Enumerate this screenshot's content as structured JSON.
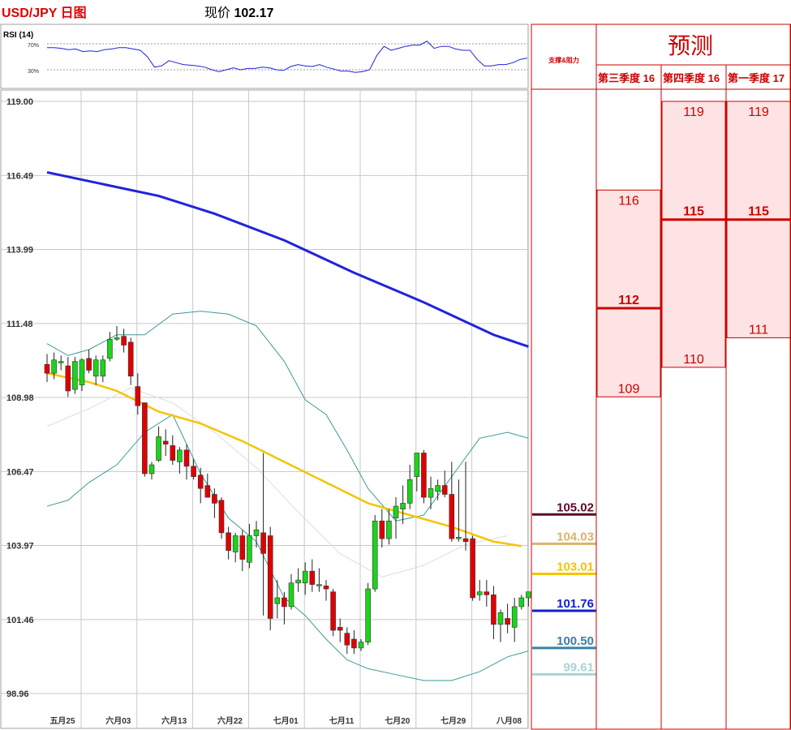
{
  "header": {
    "pair_title": "USD/JPY 日图",
    "price_label": "现价",
    "price_value": "102.17"
  },
  "rsi": {
    "label": "RSI (14)",
    "levels": [
      "70%",
      "30%"
    ],
    "values": [
      64,
      64,
      63,
      61,
      62,
      58,
      59,
      58,
      61,
      62,
      64,
      64,
      62,
      60,
      50,
      34,
      36,
      44,
      41,
      38,
      37,
      36,
      34,
      30,
      27,
      30,
      33,
      30,
      32,
      32,
      34,
      33,
      30,
      29,
      35,
      38,
      36,
      35,
      38,
      34,
      31,
      28,
      28,
      26,
      27,
      30,
      52,
      66,
      60,
      63,
      66,
      68,
      68,
      74,
      63,
      66,
      66,
      62,
      60,
      60,
      46,
      36,
      36,
      38,
      38,
      41,
      46,
      48
    ]
  },
  "chart_data": {
    "type": "candlestick",
    "y_ticks": [
      "119.00",
      "116.49",
      "113.99",
      "111.48",
      "108.98",
      "106.47",
      "103.97",
      "101.46",
      "98.96"
    ],
    "ylim": [
      98.96,
      119.0
    ],
    "x_ticks": [
      "五月25",
      "六月03",
      "六月13",
      "六月22",
      "七月01",
      "七月11",
      "七月20",
      "七月29",
      "八月08"
    ],
    "x_tick_index": [
      0,
      8,
      16,
      24,
      32,
      40,
      48,
      56,
      64
    ],
    "candles": [
      [
        110.1,
        110.45,
        109.5,
        109.8
      ],
      [
        109.8,
        110.5,
        109.6,
        110.25
      ],
      [
        110.15,
        110.4,
        109.9,
        110.2
      ],
      [
        110.05,
        110.35,
        109.0,
        109.2
      ],
      [
        109.25,
        110.35,
        109.1,
        110.2
      ],
      [
        109.4,
        110.3,
        109.2,
        110.25
      ],
      [
        110.3,
        110.6,
        109.8,
        109.9
      ],
      [
        109.7,
        110.4,
        109.4,
        110.25
      ],
      [
        109.7,
        110.4,
        109.5,
        110.25
      ],
      [
        110.3,
        111.2,
        110.2,
        110.95
      ],
      [
        110.95,
        111.4,
        110.9,
        111.0
      ],
      [
        111.05,
        111.3,
        110.5,
        110.75
      ],
      [
        110.85,
        111.0,
        109.4,
        109.7
      ],
      [
        109.35,
        109.8,
        108.4,
        108.7
      ],
      [
        108.8,
        108.8,
        106.3,
        106.4
      ],
      [
        106.4,
        106.8,
        106.2,
        106.7
      ],
      [
        106.85,
        108.0,
        106.8,
        107.65
      ],
      [
        107.5,
        107.9,
        107.0,
        107.4
      ],
      [
        107.35,
        107.7,
        106.7,
        106.85
      ],
      [
        106.8,
        107.3,
        106.4,
        107.2
      ],
      [
        107.2,
        107.4,
        106.2,
        106.65
      ],
      [
        106.65,
        106.9,
        106.2,
        106.3
      ],
      [
        106.35,
        106.6,
        105.4,
        105.9
      ],
      [
        106.0,
        106.4,
        105.6,
        105.6
      ],
      [
        105.7,
        105.9,
        104.9,
        105.4
      ],
      [
        105.5,
        105.6,
        104.2,
        104.4
      ],
      [
        104.4,
        104.6,
        103.5,
        103.8
      ],
      [
        103.75,
        104.4,
        103.4,
        104.3
      ],
      [
        104.3,
        104.5,
        103.1,
        103.5
      ],
      [
        103.4,
        104.7,
        103.2,
        104.3
      ],
      [
        104.3,
        104.8,
        103.9,
        104.5
      ],
      [
        104.4,
        107.1,
        101.6,
        103.7
      ],
      [
        104.3,
        104.6,
        101.1,
        101.5
      ],
      [
        102.0,
        102.8,
        101.5,
        102.2
      ],
      [
        102.2,
        102.4,
        101.3,
        101.9
      ],
      [
        101.9,
        103.0,
        101.8,
        102.7
      ],
      [
        102.7,
        103.2,
        102.4,
        102.8
      ],
      [
        102.7,
        103.4,
        102.3,
        103.1
      ],
      [
        103.1,
        103.5,
        102.4,
        102.65
      ],
      [
        102.6,
        103.2,
        102.4,
        102.65
      ],
      [
        102.6,
        102.8,
        102.1,
        102.5
      ],
      [
        102.4,
        102.5,
        100.9,
        101.1
      ],
      [
        101.2,
        101.5,
        100.7,
        101.1
      ],
      [
        101.0,
        101.2,
        100.3,
        100.6
      ],
      [
        100.8,
        101.1,
        100.3,
        100.5
      ],
      [
        100.5,
        100.8,
        100.4,
        100.7
      ],
      [
        100.7,
        102.7,
        100.6,
        102.5
      ],
      [
        102.5,
        105.0,
        102.4,
        104.8
      ],
      [
        104.8,
        105.2,
        103.9,
        104.2
      ],
      [
        104.2,
        105.2,
        104.0,
        104.8
      ],
      [
        104.9,
        105.6,
        104.2,
        105.3
      ],
      [
        105.2,
        106.0,
        104.7,
        105.4
      ],
      [
        105.4,
        106.7,
        105.2,
        106.2
      ],
      [
        106.3,
        107.0,
        105.8,
        107.1
      ],
      [
        107.1,
        107.2,
        105.4,
        105.6
      ],
      [
        105.6,
        106.3,
        105.2,
        105.9
      ],
      [
        105.8,
        106.2,
        105.5,
        106.0
      ],
      [
        106.0,
        106.5,
        105.6,
        105.7
      ],
      [
        105.7,
        106.8,
        104.1,
        104.2
      ],
      [
        104.2,
        106.2,
        104.1,
        104.25
      ],
      [
        104.2,
        106.8,
        103.8,
        104.1
      ],
      [
        104.2,
        104.3,
        102.1,
        102.2
      ],
      [
        102.3,
        102.8,
        102.1,
        102.4
      ],
      [
        102.4,
        102.8,
        101.9,
        102.3
      ],
      [
        102.3,
        102.6,
        100.8,
        101.3
      ],
      [
        101.3,
        101.8,
        100.7,
        101.7
      ],
      [
        101.5,
        102.0,
        101.0,
        101.3
      ],
      [
        101.2,
        102.2,
        100.7,
        101.9
      ],
      [
        101.9,
        102.3,
        101.8,
        102.2
      ],
      [
        102.2,
        102.4,
        101.9,
        102.4
      ]
    ],
    "ma_long": {
      "color": "#2222dd",
      "points": [
        [
          0,
          116.6
        ],
        [
          16,
          115.8
        ],
        [
          24,
          115.2
        ],
        [
          34,
          114.3
        ],
        [
          44,
          113.2
        ],
        [
          54,
          112.2
        ],
        [
          64,
          111.1
        ],
        [
          69,
          110.7
        ]
      ]
    },
    "ma_mid": {
      "color": "#f5c400",
      "points": [
        [
          0,
          109.8
        ],
        [
          6,
          109.5
        ],
        [
          10,
          109.2
        ],
        [
          16,
          108.5
        ],
        [
          22,
          108.1
        ],
        [
          28,
          107.5
        ],
        [
          34,
          106.8
        ],
        [
          40,
          106.1
        ],
        [
          46,
          105.4
        ],
        [
          52,
          105.0
        ],
        [
          58,
          104.6
        ],
        [
          64,
          104.1
        ],
        [
          68,
          103.95
        ]
      ]
    },
    "ma_faint": {
      "color": "#dddddd",
      "points": [
        [
          0,
          108.0
        ],
        [
          6,
          108.6
        ],
        [
          12,
          109.3
        ],
        [
          18,
          108.8
        ],
        [
          24,
          107.8
        ],
        [
          30,
          106.6
        ],
        [
          36,
          105.1
        ],
        [
          42,
          103.7
        ],
        [
          48,
          102.9
        ],
        [
          54,
          103.3
        ],
        [
          60,
          104.0
        ],
        [
          66,
          104.3
        ]
      ]
    },
    "bb_upper": {
      "color": "#3a9b96",
      "points": [
        [
          0,
          110.8
        ],
        [
          3,
          110.4
        ],
        [
          6,
          110.6
        ],
        [
          10,
          111.1
        ],
        [
          14,
          111.1
        ],
        [
          18,
          111.8
        ],
        [
          22,
          111.9
        ],
        [
          26,
          111.8
        ],
        [
          30,
          111.4
        ],
        [
          34,
          110.2
        ],
        [
          37,
          108.9
        ],
        [
          40,
          108.4
        ],
        [
          43,
          107.2
        ],
        [
          46,
          105.9
        ],
        [
          50,
          104.8
        ],
        [
          54,
          105.0
        ],
        [
          58,
          106.3
        ],
        [
          62,
          107.6
        ],
        [
          66,
          107.8
        ],
        [
          69,
          107.6
        ]
      ]
    },
    "bb_lower": {
      "color": "#3a9b96",
      "points": [
        [
          0,
          105.3
        ],
        [
          3,
          105.5
        ],
        [
          6,
          106.1
        ],
        [
          10,
          106.7
        ],
        [
          14,
          107.8
        ],
        [
          18,
          108.4
        ],
        [
          22,
          106.4
        ],
        [
          26,
          104.9
        ],
        [
          30,
          104.1
        ],
        [
          34,
          102.2
        ],
        [
          37,
          101.6
        ],
        [
          40,
          100.8
        ],
        [
          43,
          100.1
        ],
        [
          46,
          99.8
        ],
        [
          50,
          99.6
        ],
        [
          54,
          99.4
        ],
        [
          58,
          99.4
        ],
        [
          62,
          99.7
        ],
        [
          66,
          100.2
        ],
        [
          69,
          100.4
        ]
      ]
    }
  },
  "sr_panel": {
    "header": "支撑&阻力",
    "levels": [
      {
        "value": "105.02",
        "color": "#5c0a2a",
        "text_color": "#5c0a2a"
      },
      {
        "value": "104.03",
        "color": "#d9b46a",
        "text_color": "#d9b46a"
      },
      {
        "value": "103.01",
        "color": "#f5c400",
        "text_color": "#f5c400"
      },
      {
        "value": "101.76",
        "color": "#1020cc",
        "text_color": "#1020cc"
      },
      {
        "value": "100.50",
        "color": "#3a7fa8",
        "text_color": "#3a7fa8"
      },
      {
        "value": "99.61",
        "color": "#a8d4d6",
        "text_color": "#a8d4d6"
      }
    ]
  },
  "forecast": {
    "title": "预测",
    "columns": [
      {
        "label": "第三季度 16",
        "high": "116",
        "mid": "112",
        "low": "109"
      },
      {
        "label": "第四季度 16",
        "high": "119",
        "mid": "115",
        "low": "110"
      },
      {
        "label": "第一季度 17",
        "high": "119",
        "mid": "115",
        "low": "111"
      }
    ]
  }
}
